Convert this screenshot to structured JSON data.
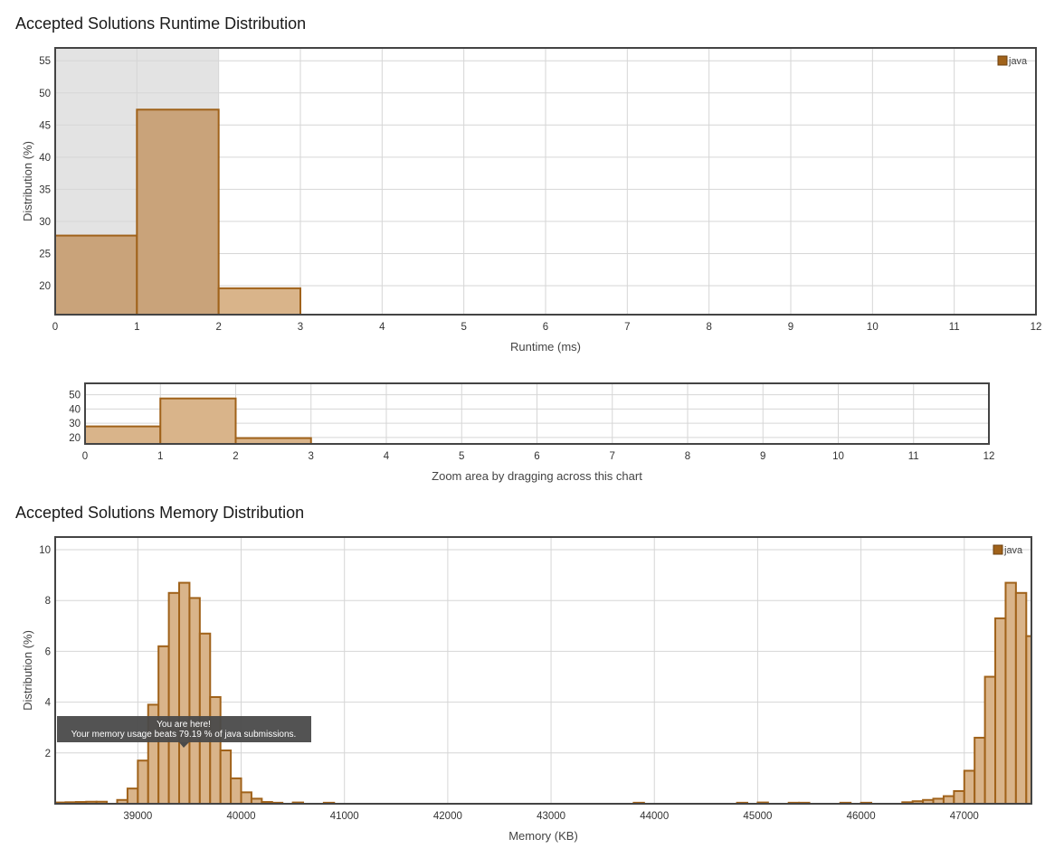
{
  "runtime": {
    "title": "Accepted Solutions Runtime Distribution",
    "zoom_caption": "Zoom area by dragging across this chart"
  },
  "memory": {
    "title": "Accepted Solutions Memory Distribution",
    "tooltip": {
      "line1": "You are here!",
      "line2": "Your memory usage beats 79.19 % of java submissions."
    }
  },
  "colors": {
    "bar_fill": "#d9b48a",
    "bar_highlight_fill": "#c9a37a",
    "bar_stroke": "#a0621a",
    "legend_swatch": "#a0621a",
    "highlight_band": "#e3e3e3",
    "grid": "#d6d6d6",
    "frame": "#444444",
    "tooltip_bg": "#4a4a4a"
  },
  "chart_data": [
    {
      "id": "runtime",
      "type": "bar",
      "title": "Accepted Solutions Runtime Distribution",
      "xlabel": "Runtime (ms)",
      "ylabel": "Distribution (%)",
      "xlim": [
        0,
        12
      ],
      "ylim": [
        15.5,
        57
      ],
      "xticks": [
        0,
        1,
        2,
        3,
        4,
        5,
        6,
        7,
        8,
        9,
        10,
        11,
        12
      ],
      "yticks": [
        20,
        25,
        30,
        35,
        40,
        45,
        50,
        55
      ],
      "grid": true,
      "legend": "top-right",
      "highlight_range": [
        0,
        2
      ],
      "series": [
        {
          "name": "java",
          "bins": [
            {
              "x0": 0,
              "x1": 1,
              "y": 27.8
            },
            {
              "x0": 1,
              "x1": 2,
              "y": 47.4
            },
            {
              "x0": 2,
              "x1": 3,
              "y": 19.6
            }
          ]
        }
      ]
    },
    {
      "id": "zoom",
      "type": "bar",
      "xlabel": "Zoom area by dragging across this chart",
      "xlim": [
        0,
        12
      ],
      "ylim": [
        15.5,
        58
      ],
      "xticks": [
        0,
        1,
        2,
        3,
        4,
        5,
        6,
        7,
        8,
        9,
        10,
        11,
        12
      ],
      "yticks": [
        20,
        30,
        40,
        50
      ],
      "grid": true,
      "series": [
        {
          "name": "java",
          "bins": [
            {
              "x0": 0,
              "x1": 1,
              "y": 27.8
            },
            {
              "x0": 1,
              "x1": 2,
              "y": 47.4
            },
            {
              "x0": 2,
              "x1": 3,
              "y": 19.6
            }
          ]
        }
      ]
    },
    {
      "id": "memory",
      "type": "bar",
      "title": "Accepted Solutions Memory Distribution",
      "xlabel": "Memory (KB)",
      "ylabel": "Distribution (%)",
      "xlim": [
        38200,
        47650
      ],
      "ylim": [
        0,
        10.5
      ],
      "xticks": [
        39000,
        40000,
        41000,
        42000,
        43000,
        44000,
        45000,
        46000,
        47000
      ],
      "yticks": [
        2,
        4,
        6,
        8,
        10
      ],
      "grid": true,
      "legend": "top-right",
      "bin_width": 100,
      "series": [
        {
          "name": "java",
          "bins": [
            {
              "x": 38200,
              "y": 0.05
            },
            {
              "x": 38300,
              "y": 0.06
            },
            {
              "x": 38400,
              "y": 0.07
            },
            {
              "x": 38500,
              "y": 0.08
            },
            {
              "x": 38600,
              "y": 0.08
            },
            {
              "x": 38800,
              "y": 0.15
            },
            {
              "x": 38900,
              "y": 0.6
            },
            {
              "x": 39000,
              "y": 1.7
            },
            {
              "x": 39100,
              "y": 3.9
            },
            {
              "x": 39200,
              "y": 6.2
            },
            {
              "x": 39300,
              "y": 8.3
            },
            {
              "x": 39400,
              "y": 8.7
            },
            {
              "x": 39500,
              "y": 8.1
            },
            {
              "x": 39600,
              "y": 6.7
            },
            {
              "x": 39700,
              "y": 4.2
            },
            {
              "x": 39800,
              "y": 2.1
            },
            {
              "x": 39900,
              "y": 1.0
            },
            {
              "x": 40000,
              "y": 0.45
            },
            {
              "x": 40100,
              "y": 0.2
            },
            {
              "x": 40200,
              "y": 0.07
            },
            {
              "x": 40300,
              "y": 0.04
            },
            {
              "x": 40500,
              "y": 0.05
            },
            {
              "x": 40800,
              "y": 0.04
            },
            {
              "x": 43800,
              "y": 0.04
            },
            {
              "x": 44800,
              "y": 0.04
            },
            {
              "x": 45000,
              "y": 0.05
            },
            {
              "x": 45300,
              "y": 0.04
            },
            {
              "x": 45400,
              "y": 0.04
            },
            {
              "x": 45800,
              "y": 0.04
            },
            {
              "x": 46000,
              "y": 0.04
            },
            {
              "x": 46400,
              "y": 0.06
            },
            {
              "x": 46500,
              "y": 0.1
            },
            {
              "x": 46600,
              "y": 0.15
            },
            {
              "x": 46700,
              "y": 0.2
            },
            {
              "x": 46800,
              "y": 0.3
            },
            {
              "x": 46900,
              "y": 0.5
            },
            {
              "x": 47000,
              "y": 1.3
            },
            {
              "x": 47100,
              "y": 2.6
            },
            {
              "x": 47200,
              "y": 5.0
            },
            {
              "x": 47300,
              "y": 7.3
            },
            {
              "x": 47400,
              "y": 8.7
            },
            {
              "x": 47500,
              "y": 8.3
            },
            {
              "x": 47600,
              "y": 6.6
            }
          ]
        }
      ]
    }
  ]
}
